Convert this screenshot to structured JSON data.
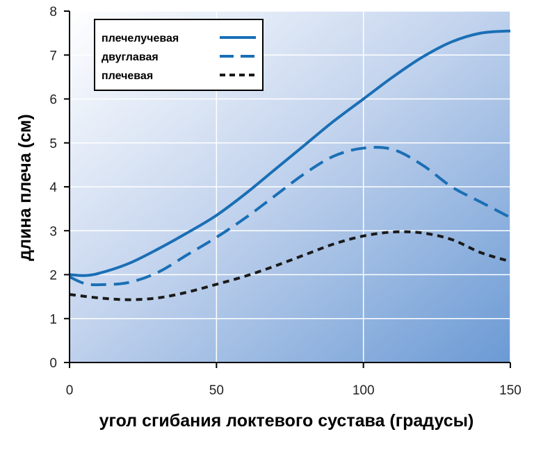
{
  "chart_data": {
    "type": "line",
    "title": "",
    "xlabel": "угол сгибания локтевого сустава (градусы)",
    "ylabel": "длина плеча (см)",
    "xlim": [
      0,
      150
    ],
    "ylim": [
      0,
      8
    ],
    "xticks": [
      "0",
      "50",
      "100",
      "150"
    ],
    "yticks": [
      "0",
      "1",
      "2",
      "3",
      "4",
      "5",
      "6",
      "7",
      "8"
    ],
    "grid": true,
    "legend_position": "top-left",
    "series": [
      {
        "name": "плечелучевая",
        "style": "solid",
        "color": "#1a6fb5",
        "x": [
          0,
          5,
          10,
          20,
          30,
          40,
          50,
          60,
          70,
          80,
          90,
          100,
          110,
          120,
          130,
          140,
          150
        ],
        "y": [
          2.0,
          1.98,
          2.03,
          2.25,
          2.58,
          2.95,
          3.35,
          3.85,
          4.4,
          4.95,
          5.5,
          6.0,
          6.5,
          6.95,
          7.3,
          7.5,
          7.55
        ]
      },
      {
        "name": "двуглавая",
        "style": "dashed",
        "color": "#1a6fb5",
        "x": [
          0,
          5,
          10,
          20,
          30,
          40,
          50,
          60,
          70,
          80,
          90,
          100,
          110,
          120,
          130,
          140,
          150
        ],
        "y": [
          1.95,
          1.8,
          1.77,
          1.82,
          2.05,
          2.45,
          2.85,
          3.3,
          3.8,
          4.3,
          4.7,
          4.88,
          4.85,
          4.5,
          4.0,
          3.65,
          3.3
        ]
      },
      {
        "name": "плечевая",
        "style": "dotted",
        "color": "#1a1a1a",
        "x": [
          0,
          10,
          20,
          30,
          40,
          50,
          60,
          70,
          80,
          90,
          100,
          110,
          120,
          130,
          140,
          150
        ],
        "y": [
          1.55,
          1.47,
          1.43,
          1.47,
          1.6,
          1.78,
          1.97,
          2.2,
          2.45,
          2.7,
          2.88,
          2.97,
          2.95,
          2.8,
          2.5,
          2.3
        ]
      }
    ]
  }
}
